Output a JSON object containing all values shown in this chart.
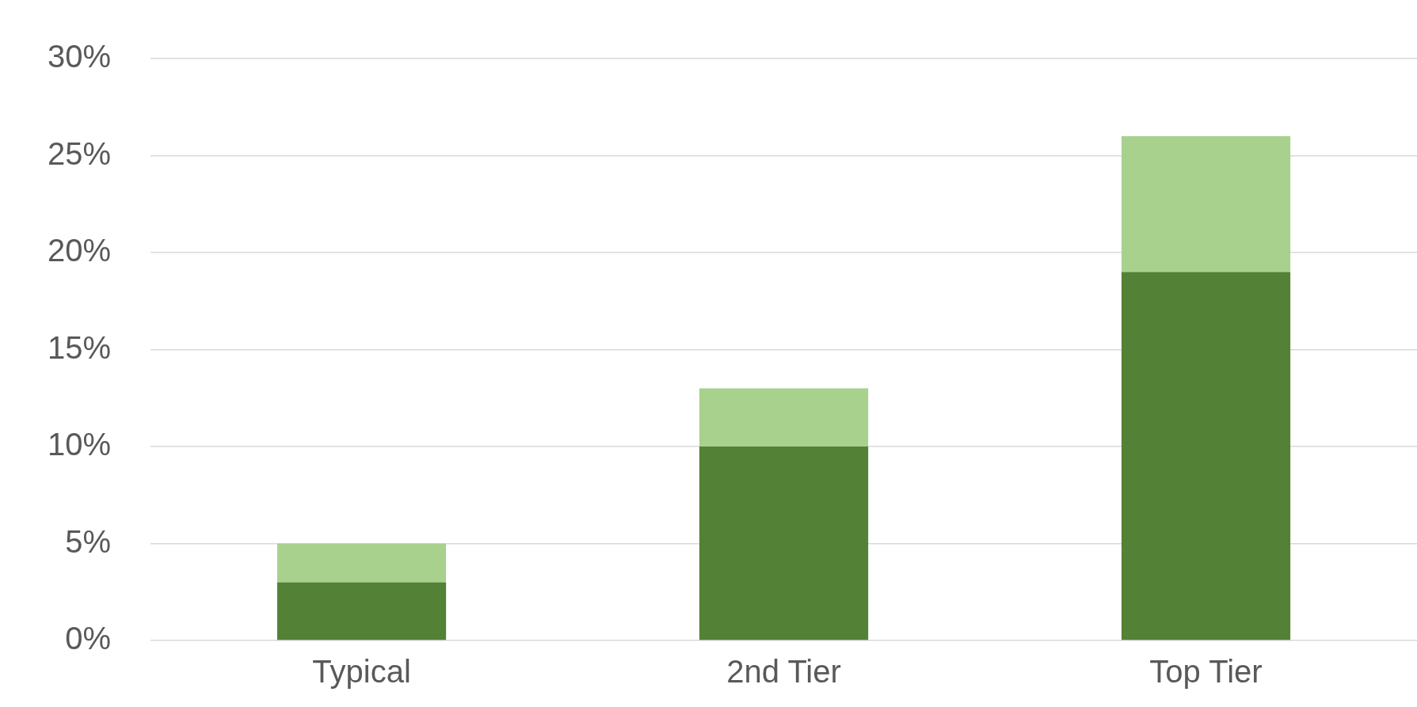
{
  "chart_data": {
    "type": "bar",
    "stacked": true,
    "categories": [
      "Typical",
      "2nd Tier",
      "Top Tier"
    ],
    "series": [
      {
        "color": "#538135",
        "values": [
          3,
          10,
          19
        ]
      },
      {
        "color": "#a9d18e",
        "values": [
          2,
          3,
          7
        ]
      }
    ],
    "ylim": [
      0,
      30
    ],
    "yticks": [
      {
        "value": 0,
        "label": "0%"
      },
      {
        "value": 5,
        "label": "5%"
      },
      {
        "value": 10,
        "label": "10%"
      },
      {
        "value": 15,
        "label": "15%"
      },
      {
        "value": 20,
        "label": "20%"
      },
      {
        "value": 25,
        "label": "25%"
      },
      {
        "value": 30,
        "label": "30%"
      }
    ],
    "grid": "y"
  }
}
